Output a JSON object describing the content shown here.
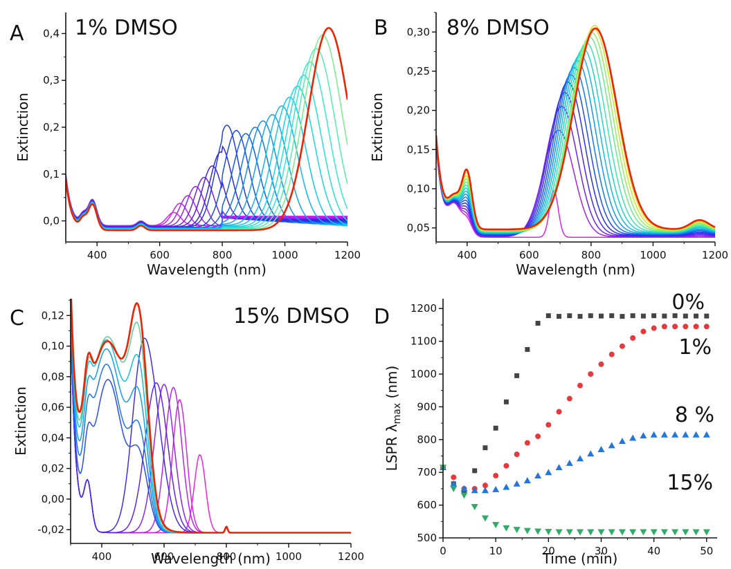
{
  "chart_data": [
    {
      "panel": "A",
      "type": "line",
      "title": "1% DMSO",
      "xlabel": "Wavelength (nm)",
      "ylabel": "Extinction",
      "xlim": [
        300,
        1200
      ],
      "ylim": [
        -0.045,
        0.445
      ],
      "xticks": [
        400,
        600,
        800,
        1000,
        1200
      ],
      "yticks": [
        0.0,
        0.1,
        0.2,
        0.3,
        0.4
      ],
      "ytick_labels": [
        "0,0",
        "0,1",
        "0,2",
        "0,3",
        "0,4"
      ],
      "grid": false,
      "colormap": [
        "#dd22ee",
        "#9922ee",
        "#3322dd",
        "#1155ee",
        "#1199ee",
        "#11ccee",
        "#33eecc",
        "#99ee66"
      ],
      "final_color": "#ee2200",
      "series": [
        {
          "peak_nm": 645,
          "peak_value": 0.028
        },
        {
          "peak_nm": 665,
          "peak_value": 0.048
        },
        {
          "peak_nm": 690,
          "peak_value": 0.065
        },
        {
          "peak_nm": 715,
          "peak_value": 0.085
        },
        {
          "peak_nm": 742,
          "peak_value": 0.105
        },
        {
          "peak_nm": 768,
          "peak_value": 0.13
        },
        {
          "peak_nm": 795,
          "peak_value": 0.16
        },
        {
          "peak_nm": 815,
          "peak_value": 0.205
        },
        {
          "peak_nm": 845,
          "peak_value": 0.195
        },
        {
          "peak_nm": 875,
          "peak_value": 0.19
        },
        {
          "peak_nm": 905,
          "peak_value": 0.205
        },
        {
          "peak_nm": 930,
          "peak_value": 0.22
        },
        {
          "peak_nm": 960,
          "peak_value": 0.235
        },
        {
          "peak_nm": 990,
          "peak_value": 0.255
        },
        {
          "peak_nm": 1015,
          "peak_value": 0.275
        },
        {
          "peak_nm": 1040,
          "peak_value": 0.3
        },
        {
          "peak_nm": 1060,
          "peak_value": 0.325
        },
        {
          "peak_nm": 1080,
          "peak_value": 0.355
        },
        {
          "peak_nm": 1100,
          "peak_value": 0.385
        },
        {
          "peak_nm": 1120,
          "peak_value": 0.415
        },
        {
          "peak_nm": 1140,
          "peak_value": 0.432
        }
      ]
    },
    {
      "panel": "B",
      "type": "line",
      "title": "8% DMSO",
      "xlabel": "Wavelength (nm)",
      "ylabel": "Extinction",
      "xlim": [
        300,
        1200
      ],
      "ylim": [
        0.032,
        0.325
      ],
      "xticks": [
        400,
        600,
        800,
        1000,
        1200
      ],
      "yticks": [
        0.05,
        0.1,
        0.15,
        0.2,
        0.25,
        0.3
      ],
      "ytick_labels": [
        "0,05",
        "0,10",
        "0,15",
        "0,20",
        "0,25",
        "0,30"
      ],
      "grid": false,
      "colormap": [
        "#dd22ee",
        "#6622ee",
        "#2233ee",
        "#1188ee",
        "#11ccdd",
        "#55ee99",
        "#bbee33",
        "#ffcc11"
      ],
      "final_color": "#ee2200",
      "series": [
        {
          "peak_nm": 680,
          "peak_value": 0.06
        },
        {
          "peak_nm": 695,
          "peak_value": 0.16
        },
        {
          "peak_nm": 705,
          "peak_value": 0.195
        },
        {
          "peak_nm": 715,
          "peak_value": 0.215
        },
        {
          "peak_nm": 725,
          "peak_value": 0.23
        },
        {
          "peak_nm": 735,
          "peak_value": 0.24
        },
        {
          "peak_nm": 745,
          "peak_value": 0.25
        },
        {
          "peak_nm": 755,
          "peak_value": 0.26
        },
        {
          "peak_nm": 765,
          "peak_value": 0.268
        },
        {
          "peak_nm": 775,
          "peak_value": 0.276
        },
        {
          "peak_nm": 785,
          "peak_value": 0.284
        },
        {
          "peak_nm": 795,
          "peak_value": 0.292
        },
        {
          "peak_nm": 802,
          "peak_value": 0.298
        },
        {
          "peak_nm": 808,
          "peak_value": 0.303
        },
        {
          "peak_nm": 812,
          "peak_value": 0.307
        },
        {
          "peak_nm": 814,
          "peak_value": 0.302
        }
      ]
    },
    {
      "panel": "C",
      "type": "line",
      "title": "15% DMSO",
      "xlabel": "Wavelength (nm)",
      "ylabel": "Extinction",
      "xlim": [
        300,
        1200
      ],
      "ylim": [
        -0.029,
        0.131
      ],
      "xticks": [
        400,
        600,
        800,
        1000,
        1200
      ],
      "yticks": [
        -0.02,
        0.0,
        0.02,
        0.04,
        0.06,
        0.08,
        0.1,
        0.12
      ],
      "ytick_labels": [
        "-0,02",
        "0,00",
        "0,02",
        "0,04",
        "0,06",
        "0,08",
        "0,10",
        "0,12"
      ],
      "grid": false,
      "colormap": [
        "#ee22dd",
        "#cc22ee",
        "#8822ee",
        "#4422ee",
        "#2255ee",
        "#1199ee",
        "#11ccdd",
        "#eecc11"
      ],
      "final_color": "#ee2200",
      "series": [
        {
          "peak_nm": 715,
          "peak_value": 0.051
        },
        {
          "peak_nm": 650,
          "peak_value": 0.087
        },
        {
          "peak_nm": 630,
          "peak_value": 0.095
        },
        {
          "peak_nm": 600,
          "peak_value": 0.097
        },
        {
          "peak_nm": 575,
          "peak_value": 0.098
        },
        {
          "peak_nm": 550,
          "peak_value": 0.1
        },
        {
          "peak_nm": 420,
          "peak_value": 0.1
        },
        {
          "peak_nm": 415,
          "peak_value": 0.11
        },
        {
          "peak_nm": 415,
          "peak_value": 0.12
        },
        {
          "peak_nm": 415,
          "peak_value": 0.126
        },
        {
          "peak_nm": 418,
          "peak_value": 0.128
        },
        {
          "peak_nm": 418,
          "peak_value": 0.125
        }
      ]
    },
    {
      "panel": "D",
      "type": "scatter",
      "xlabel": "Time (min)",
      "ylabel": "LSPR λmax (nm)",
      "xlim": [
        0,
        52
      ],
      "ylim": [
        500,
        1230
      ],
      "xticks": [
        0,
        10,
        20,
        30,
        40,
        50
      ],
      "yticks": [
        500,
        600,
        700,
        800,
        900,
        1000,
        1100,
        1200
      ],
      "grid": false,
      "series": [
        {
          "name": "0%",
          "color": "#444444",
          "marker": "square",
          "x": [
            0,
            2,
            4,
            6,
            8,
            10,
            12,
            14,
            16,
            18,
            20,
            22,
            24,
            26,
            28,
            30,
            32,
            34,
            36,
            38,
            40,
            42,
            44,
            46,
            48,
            50
          ],
          "y": [
            715,
            665,
            645,
            705,
            775,
            835,
            915,
            995,
            1075,
            1155,
            1178,
            1176,
            1178,
            1176,
            1178,
            1177,
            1178,
            1176,
            1178,
            1177,
            1178,
            1177,
            1178,
            1177,
            1177,
            1177
          ]
        },
        {
          "name": "1%",
          "color": "#e8383c",
          "marker": "circle",
          "x": [
            0,
            2,
            4,
            6,
            8,
            10,
            12,
            14,
            16,
            18,
            20,
            22,
            24,
            26,
            28,
            30,
            32,
            34,
            36,
            38,
            40,
            42,
            44,
            46,
            48,
            50
          ],
          "y": [
            715,
            685,
            650,
            650,
            660,
            690,
            720,
            755,
            790,
            810,
            845,
            885,
            925,
            965,
            1000,
            1030,
            1060,
            1085,
            1110,
            1130,
            1140,
            1145,
            1145,
            1145,
            1145,
            1145
          ]
        },
        {
          "name": "8 %",
          "color": "#2277dd",
          "marker": "triangle-up",
          "x": [
            0,
            2,
            4,
            6,
            8,
            10,
            12,
            14,
            16,
            18,
            20,
            22,
            24,
            26,
            28,
            30,
            32,
            34,
            36,
            38,
            40,
            42,
            44,
            46,
            48,
            50
          ],
          "y": [
            715,
            665,
            650,
            645,
            645,
            648,
            655,
            665,
            675,
            690,
            700,
            715,
            728,
            742,
            757,
            770,
            782,
            795,
            805,
            812,
            815,
            815,
            815,
            815,
            815,
            815
          ]
        },
        {
          "name": "15%",
          "color": "#33aa66",
          "marker": "triangle-down",
          "x": [
            0,
            2,
            4,
            6,
            8,
            10,
            12,
            14,
            16,
            18,
            20,
            22,
            24,
            26,
            28,
            30,
            32,
            34,
            36,
            38,
            40,
            42,
            44,
            46,
            48,
            50
          ],
          "y": [
            715,
            650,
            630,
            595,
            560,
            540,
            530,
            525,
            522,
            520,
            519,
            518,
            518,
            518,
            518,
            518,
            518,
            518,
            518,
            518,
            518,
            518,
            518,
            518,
            518,
            518
          ]
        }
      ]
    }
  ]
}
